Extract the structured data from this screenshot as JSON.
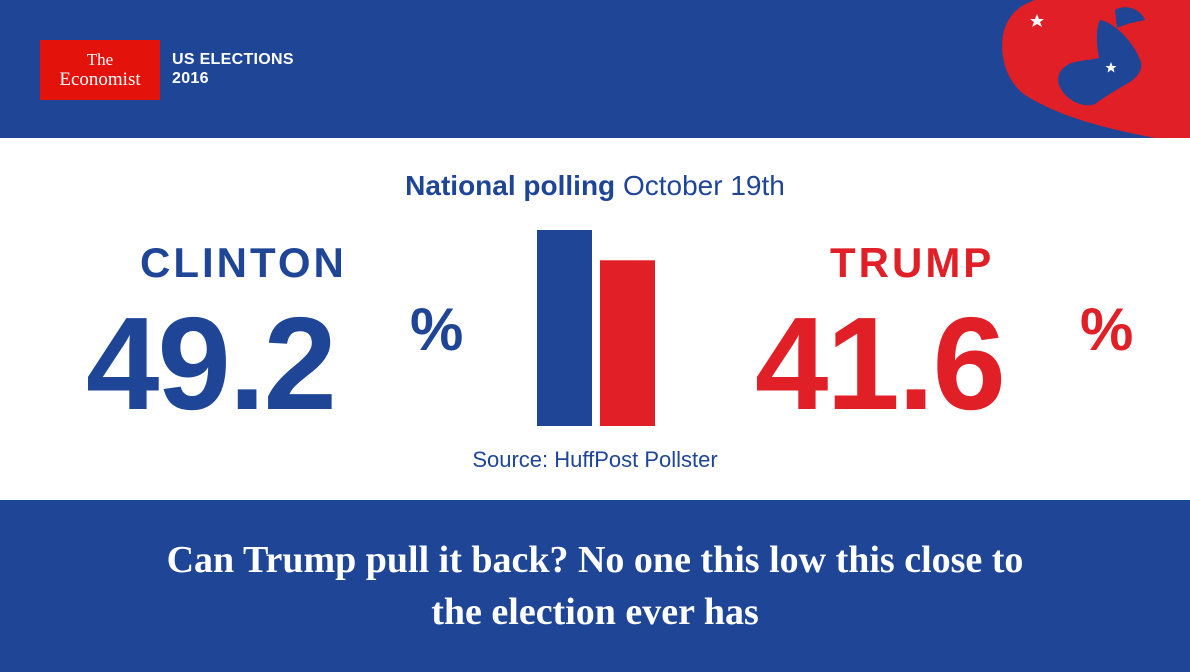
{
  "brand": {
    "logo_line1": "The",
    "logo_line2": "Economist",
    "series_title_line1": "US ELECTIONS",
    "series_title_line2": "2016",
    "mascot_icon": "donkey-icon"
  },
  "colors": {
    "democrat_blue": "#1f4597",
    "republican_red": "#e01f26",
    "economist_red": "#e3120b",
    "background": "#ffffff"
  },
  "headline": {
    "strong": "National polling",
    "date": "October 19th"
  },
  "candidates": [
    {
      "name": "CLINTON",
      "value_text": "49.2",
      "unit": "%"
    },
    {
      "name": "TRUMP",
      "value_text": "41.6",
      "unit": "%"
    }
  ],
  "source": "Source: HuffPost Pollster",
  "caption": "Can Trump pull it back? No one this low this close to the election ever has",
  "chart_data": {
    "type": "bar",
    "title": "National polling October 19th",
    "categories": [
      "CLINTON",
      "TRUMP"
    ],
    "values": [
      49.2,
      41.6
    ],
    "unit": "%",
    "colors": [
      "#1f4597",
      "#e01f26"
    ],
    "source": "Source: HuffPost Pollster",
    "grid": false
  }
}
